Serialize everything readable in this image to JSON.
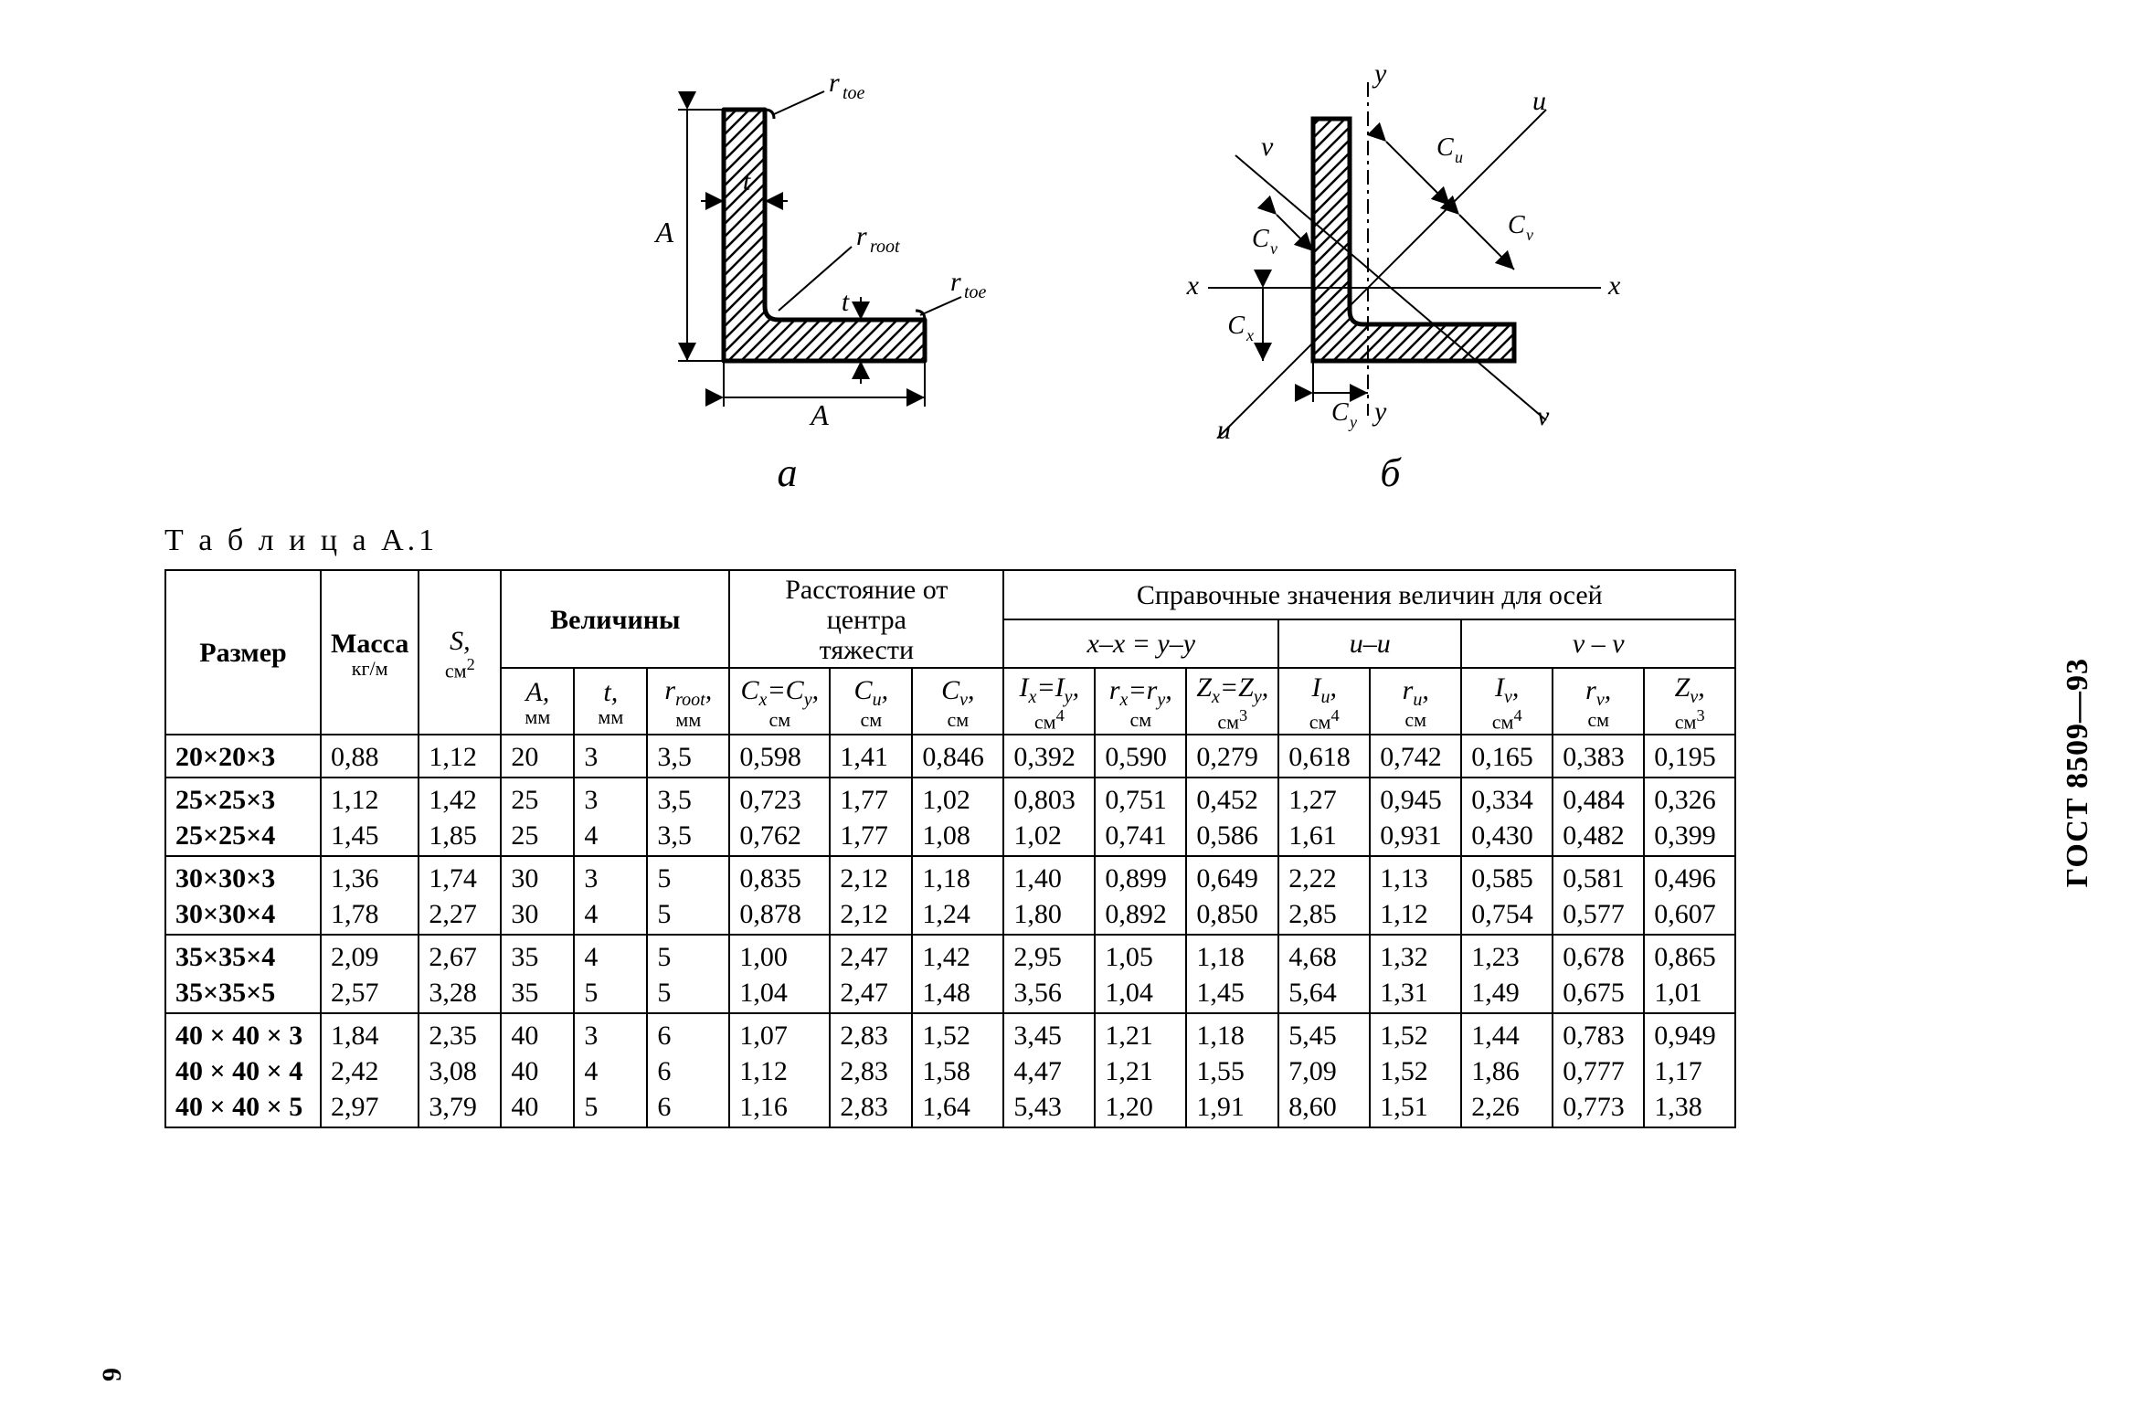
{
  "meta": {
    "gost_label": "ГОСТ 8509—93",
    "page_number": "9",
    "table_title": "Т а б л и ц а  А.1"
  },
  "diagrams": {
    "a": {
      "label": "а",
      "annotations": {
        "r_toe_top": "r_toe",
        "r_toe_right": "r_toe",
        "r_root": "r_root",
        "t_v": "t",
        "t_h": "t",
        "A_v": "A",
        "A_h": "A"
      },
      "style": {
        "stroke": "#000000",
        "hatch_spacing": 14,
        "line_weight_main": 4,
        "line_weight_thin": 2
      }
    },
    "b": {
      "label": "б",
      "annotations": {
        "y_top": "y",
        "y_bot": "y",
        "x_left": "x",
        "x_right": "x",
        "u_tl": "u",
        "u_br": "ν",
        "v_tr": "ν",
        "v_bl": "u",
        "Cu": "C_u",
        "Cv_top": "C_v",
        "Cv_right": "C_v",
        "Cx": "C_x",
        "Cy": "C_y"
      },
      "style": {
        "stroke": "#000000",
        "hatch_spacing": 14,
        "line_weight_main": 4,
        "line_weight_thin": 2
      }
    }
  },
  "table": {
    "headers": {
      "size": "Размер",
      "mass": {
        "label": "Масса",
        "unit": "кг/м"
      },
      "S": {
        "sym": "S,",
        "unit": "см",
        "exp": "2"
      },
      "group_dims": "Величины",
      "group_centroid_l1": "Расстояние от",
      "group_centroid_l2": "центра",
      "group_centroid_l3": "тяжести",
      "group_ref": "Справочные значения величин для осей",
      "axis_xy": "x–x = y–y",
      "axis_uu": "u–u",
      "axis_vv": "ν – ν",
      "A": {
        "sym": "A,",
        "unit": "мм"
      },
      "t": {
        "sym": "t,",
        "unit": "мм"
      },
      "rroot": {
        "sym": "r_root,",
        "unit": "мм"
      },
      "Cx": {
        "sym": "C_x=C_y,",
        "unit": "см"
      },
      "Cu": {
        "sym": "C_u,",
        "unit": "см"
      },
      "Cv": {
        "sym": "C_v,",
        "unit": "см"
      },
      "Ix": {
        "sym": "I_x=I_y,",
        "unit": "см",
        "exp": "4"
      },
      "rx": {
        "sym": "r_x=r_y,",
        "unit": "см"
      },
      "Zx": {
        "sym": "Z_x=Z_y,",
        "unit": "см",
        "exp": "3"
      },
      "Iu": {
        "sym": "I_u,",
        "unit": "см",
        "exp": "4"
      },
      "ru": {
        "sym": "r_u,",
        "unit": "см"
      },
      "Iv": {
        "sym": "I_v,",
        "unit": "см",
        "exp": "4"
      },
      "rv": {
        "sym": "r_v,",
        "unit": "см"
      },
      "Zv": {
        "sym": "Z_v,",
        "unit": "см",
        "exp": "3"
      }
    },
    "rows": [
      {
        "size": [
          "20×20×3"
        ],
        "mass": [
          "0,88"
        ],
        "S": [
          "1,12"
        ],
        "A": [
          "20"
        ],
        "t": [
          "3"
        ],
        "rroot": [
          "3,5"
        ],
        "Cx": [
          "0,598"
        ],
        "Cu": [
          "1,41"
        ],
        "Cv": [
          "0,846"
        ],
        "Ix": [
          "0,392"
        ],
        "rx": [
          "0,590"
        ],
        "Zx": [
          "0,279"
        ],
        "Iu": [
          "0,618"
        ],
        "ru": [
          "0,742"
        ],
        "Iv": [
          "0,165"
        ],
        "rv": [
          "0,383"
        ],
        "Zv": [
          "0,195"
        ]
      },
      {
        "size": [
          "25×25×3",
          "25×25×4"
        ],
        "mass": [
          "1,12",
          "1,45"
        ],
        "S": [
          "1,42",
          "1,85"
        ],
        "A": [
          "25",
          "25"
        ],
        "t": [
          "3",
          "4"
        ],
        "rroot": [
          "3,5",
          "3,5"
        ],
        "Cx": [
          "0,723",
          "0,762"
        ],
        "Cu": [
          "1,77",
          "1,77"
        ],
        "Cv": [
          "1,02",
          "1,08"
        ],
        "Ix": [
          "0,803",
          "1,02"
        ],
        "rx": [
          "0,751",
          "0,741"
        ],
        "Zx": [
          "0,452",
          "0,586"
        ],
        "Iu": [
          "1,27",
          "1,61"
        ],
        "ru": [
          "0,945",
          "0,931"
        ],
        "Iv": [
          "0,334",
          "0,430"
        ],
        "rv": [
          "0,484",
          "0,482"
        ],
        "Zv": [
          "0,326",
          "0,399"
        ]
      },
      {
        "size": [
          "30×30×3",
          "30×30×4"
        ],
        "mass": [
          "1,36",
          "1,78"
        ],
        "S": [
          "1,74",
          "2,27"
        ],
        "A": [
          "30",
          "30"
        ],
        "t": [
          "3",
          "4"
        ],
        "rroot": [
          "5",
          "5"
        ],
        "Cx": [
          "0,835",
          "0,878"
        ],
        "Cu": [
          "2,12",
          "2,12"
        ],
        "Cv": [
          "1,18",
          "1,24"
        ],
        "Ix": [
          "1,40",
          "1,80"
        ],
        "rx": [
          "0,899",
          "0,892"
        ],
        "Zx": [
          "0,649",
          "0,850"
        ],
        "Iu": [
          "2,22",
          "2,85"
        ],
        "ru": [
          "1,13",
          "1,12"
        ],
        "Iv": [
          "0,585",
          "0,754"
        ],
        "rv": [
          "0,581",
          "0,577"
        ],
        "Zv": [
          "0,496",
          "0,607"
        ]
      },
      {
        "size": [
          "35×35×4",
          "35×35×5"
        ],
        "mass": [
          "2,09",
          "2,57"
        ],
        "S": [
          "2,67",
          "3,28"
        ],
        "A": [
          "35",
          "35"
        ],
        "t": [
          "4",
          "5"
        ],
        "rroot": [
          "5",
          "5"
        ],
        "Cx": [
          "1,00",
          "1,04"
        ],
        "Cu": [
          "2,47",
          "2,47"
        ],
        "Cv": [
          "1,42",
          "1,48"
        ],
        "Ix": [
          "2,95",
          "3,56"
        ],
        "rx": [
          "1,05",
          "1,04"
        ],
        "Zx": [
          "1,18",
          "1,45"
        ],
        "Iu": [
          "4,68",
          "5,64"
        ],
        "ru": [
          "1,32",
          "1,31"
        ],
        "Iv": [
          "1,23",
          "1,49"
        ],
        "rv": [
          "0,678",
          "0,675"
        ],
        "Zv": [
          "0,865",
          "1,01"
        ]
      },
      {
        "size": [
          "40 × 40 × 3",
          "40 × 40 × 4",
          "40 × 40 × 5"
        ],
        "mass": [
          "1,84",
          "2,42",
          "2,97"
        ],
        "S": [
          "2,35",
          "3,08",
          "3,79"
        ],
        "A": [
          "40",
          "40",
          "40"
        ],
        "t": [
          "3",
          "4",
          "5"
        ],
        "rroot": [
          "6",
          "6",
          "6"
        ],
        "Cx": [
          "1,07",
          "1,12",
          "1,16"
        ],
        "Cu": [
          "2,83",
          "2,83",
          "2,83"
        ],
        "Cv": [
          "1,52",
          "1,58",
          "1,64"
        ],
        "Ix": [
          "3,45",
          "4,47",
          "5,43"
        ],
        "rx": [
          "1,21",
          "1,21",
          "1,20"
        ],
        "Zx": [
          "1,18",
          "1,55",
          "1,91"
        ],
        "Iu": [
          "5,45",
          "7,09",
          "8,60"
        ],
        "ru": [
          "1,52",
          "1,52",
          "1,51"
        ],
        "Iv": [
          "1,44",
          "1,86",
          "2,26"
        ],
        "rv": [
          "0,783",
          "0,777",
          "0,773"
        ],
        "Zv": [
          "0,949",
          "1,17",
          "1,38"
        ]
      }
    ]
  }
}
